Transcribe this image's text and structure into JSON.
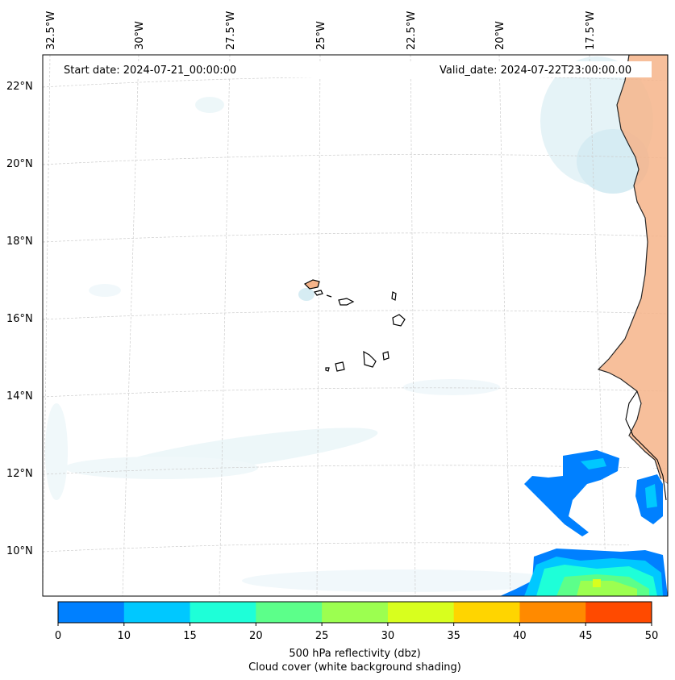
{
  "map": {
    "start_date_text": "Start date: 2024-07-21_00:00:00",
    "valid_date_text": "Valid_date: 2024-07-22T23:00:00.00",
    "lon_labels": [
      "32.5°W",
      "30°W",
      "27.5°W",
      "25°W",
      "22.5°W",
      "20°W",
      "17.5°W"
    ],
    "lat_labels": [
      "22°N",
      "20°N",
      "18°N",
      "16°N",
      "14°N",
      "12°N",
      "10°N"
    ]
  },
  "colorbar": {
    "ticks": [
      "0",
      "10",
      "15",
      "20",
      "25",
      "30",
      "35",
      "40",
      "45",
      "50"
    ],
    "colors": [
      "#0080ff",
      "#00c8ff",
      "#1effd8",
      "#5cff8a",
      "#9cff50",
      "#d8ff1e",
      "#ffd500",
      "#ff8a00",
      "#ff4a00"
    ],
    "label_line1": "500 hPa reflectivity (dbz)",
    "label_line2": "Cloud cover (white background shading)"
  },
  "colors": {
    "land": "#f6b48a",
    "cloud": "#bfe3ec",
    "coast": "#000000",
    "grid": "#cccccc"
  }
}
